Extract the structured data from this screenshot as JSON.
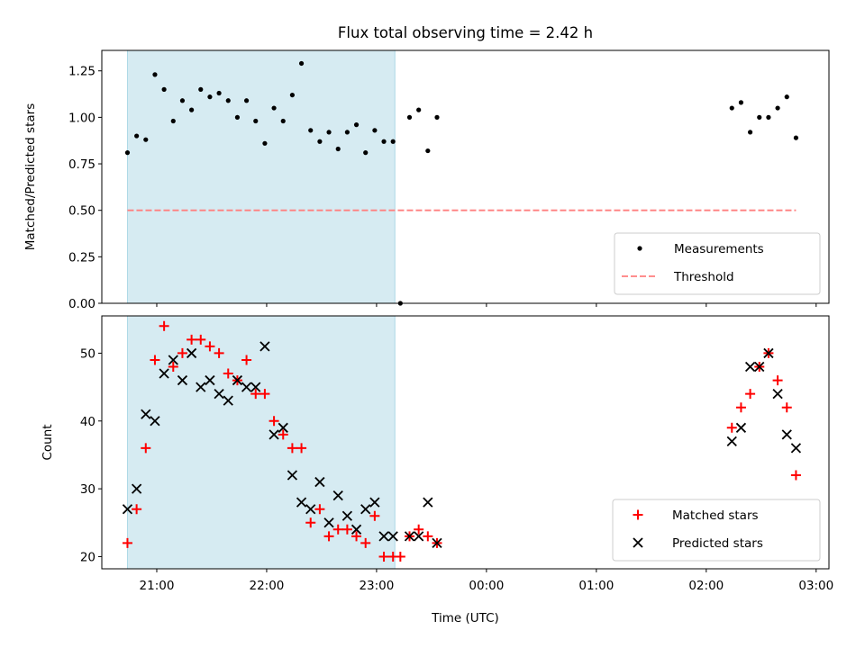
{
  "chart_data": [
    {
      "type": "scatter",
      "title": "Flux total observing time = 2.42 h",
      "xlabel": "",
      "ylabel": "Matched/Predicted stars",
      "ylim": [
        0,
        1.36
      ],
      "yticks": [
        "0.00",
        "0.25",
        "0.50",
        "0.75",
        "1.00",
        "1.25"
      ],
      "shaded_interval": [
        "20:44",
        "23:10"
      ],
      "shade_color": "#add8e6",
      "legend_position": "lower-right",
      "series": [
        {
          "name": "Measurements",
          "marker": "dot",
          "color": "#000000",
          "points": [
            [
              "20:44",
              0.81
            ],
            [
              "20:49",
              0.9
            ],
            [
              "20:54",
              0.88
            ],
            [
              "20:59",
              1.23
            ],
            [
              "21:04",
              1.15
            ],
            [
              "21:09",
              0.98
            ],
            [
              "21:14",
              1.09
            ],
            [
              "21:19",
              1.04
            ],
            [
              "21:24",
              1.15
            ],
            [
              "21:29",
              1.11
            ],
            [
              "21:34",
              1.13
            ],
            [
              "21:39",
              1.09
            ],
            [
              "21:44",
              1.0
            ],
            [
              "21:49",
              1.09
            ],
            [
              "21:54",
              0.98
            ],
            [
              "21:59",
              0.86
            ],
            [
              "22:04",
              1.05
            ],
            [
              "22:09",
              0.98
            ],
            [
              "22:14",
              1.12
            ],
            [
              "22:19",
              1.29
            ],
            [
              "22:24",
              0.93
            ],
            [
              "22:29",
              0.87
            ],
            [
              "22:34",
              0.92
            ],
            [
              "22:39",
              0.83
            ],
            [
              "22:44",
              0.92
            ],
            [
              "22:49",
              0.96
            ],
            [
              "22:54",
              0.81
            ],
            [
              "22:59",
              0.93
            ],
            [
              "23:04",
              0.87
            ],
            [
              "23:09",
              0.87
            ],
            [
              "23:13",
              0.0
            ],
            [
              "23:18",
              1.0
            ],
            [
              "23:23",
              1.04
            ],
            [
              "23:28",
              0.82
            ],
            [
              "23:33",
              1.0
            ],
            [
              "02:14",
              1.05
            ],
            [
              "02:19",
              1.08
            ],
            [
              "02:24",
              0.92
            ],
            [
              "02:29",
              1.0
            ],
            [
              "02:34",
              1.0
            ],
            [
              "02:39",
              1.05
            ],
            [
              "02:44",
              1.11
            ],
            [
              "02:49",
              0.89
            ]
          ]
        },
        {
          "name": "Threshold",
          "marker": "dashed-line",
          "color": "#ff7f7f",
          "points": [
            [
              "20:44",
              0.5
            ],
            [
              "02:49",
              0.5
            ]
          ]
        }
      ]
    },
    {
      "type": "scatter",
      "title": "",
      "xlabel": "Time (UTC)",
      "ylabel": "Count",
      "ylim": [
        18.2,
        55.5
      ],
      "yticks": [
        "20",
        "30",
        "40",
        "50"
      ],
      "xlim": [
        "20:30",
        "03:07"
      ],
      "xticks": [
        "21:00",
        "22:00",
        "23:00",
        "00:00",
        "01:00",
        "02:00",
        "03:00"
      ],
      "shaded_interval": [
        "20:44",
        "23:10"
      ],
      "shade_color": "#add8e6",
      "legend_position": "lower-right",
      "series": [
        {
          "name": "Matched stars",
          "marker": "plus",
          "color": "#ff0000",
          "points": [
            [
              "20:44",
              22
            ],
            [
              "20:49",
              27
            ],
            [
              "20:54",
              36
            ],
            [
              "20:59",
              49
            ],
            [
              "21:04",
              54
            ],
            [
              "21:09",
              48
            ],
            [
              "21:14",
              50
            ],
            [
              "21:19",
              52
            ],
            [
              "21:24",
              52
            ],
            [
              "21:29",
              51
            ],
            [
              "21:34",
              50
            ],
            [
              "21:39",
              47
            ],
            [
              "21:44",
              46
            ],
            [
              "21:49",
              49
            ],
            [
              "21:54",
              44
            ],
            [
              "21:59",
              44
            ],
            [
              "22:04",
              40
            ],
            [
              "22:09",
              38
            ],
            [
              "22:14",
              36
            ],
            [
              "22:19",
              36
            ],
            [
              "22:24",
              25
            ],
            [
              "22:29",
              27
            ],
            [
              "22:34",
              23
            ],
            [
              "22:39",
              24
            ],
            [
              "22:44",
              24
            ],
            [
              "22:49",
              23
            ],
            [
              "22:54",
              22
            ],
            [
              "22:59",
              26
            ],
            [
              "23:04",
              20
            ],
            [
              "23:09",
              20
            ],
            [
              "23:13",
              20
            ],
            [
              "23:18",
              23
            ],
            [
              "23:23",
              24
            ],
            [
              "23:28",
              23
            ],
            [
              "23:33",
              22
            ],
            [
              "02:14",
              39
            ],
            [
              "02:19",
              42
            ],
            [
              "02:24",
              44
            ],
            [
              "02:29",
              48
            ],
            [
              "02:34",
              50
            ],
            [
              "02:39",
              46
            ],
            [
              "02:44",
              42
            ],
            [
              "02:49",
              32
            ]
          ]
        },
        {
          "name": "Predicted stars",
          "marker": "x",
          "color": "#000000",
          "points": [
            [
              "20:44",
              27
            ],
            [
              "20:49",
              30
            ],
            [
              "20:54",
              41
            ],
            [
              "20:59",
              40
            ],
            [
              "21:04",
              47
            ],
            [
              "21:09",
              49
            ],
            [
              "21:14",
              46
            ],
            [
              "21:19",
              50
            ],
            [
              "21:24",
              45
            ],
            [
              "21:29",
              46
            ],
            [
              "21:34",
              44
            ],
            [
              "21:39",
              43
            ],
            [
              "21:44",
              46
            ],
            [
              "21:49",
              45
            ],
            [
              "21:54",
              45
            ],
            [
              "21:59",
              51
            ],
            [
              "22:04",
              38
            ],
            [
              "22:09",
              39
            ],
            [
              "22:14",
              32
            ],
            [
              "22:19",
              28
            ],
            [
              "22:24",
              27
            ],
            [
              "22:29",
              31
            ],
            [
              "22:34",
              25
            ],
            [
              "22:39",
              29
            ],
            [
              "22:44",
              26
            ],
            [
              "22:49",
              24
            ],
            [
              "22:54",
              27
            ],
            [
              "22:59",
              28
            ],
            [
              "23:04",
              23
            ],
            [
              "23:09",
              23
            ],
            [
              "23:18",
              23
            ],
            [
              "23:23",
              23
            ],
            [
              "23:28",
              28
            ],
            [
              "23:33",
              22
            ],
            [
              "02:14",
              37
            ],
            [
              "02:19",
              39
            ],
            [
              "02:24",
              48
            ],
            [
              "02:29",
              48
            ],
            [
              "02:34",
              50
            ],
            [
              "02:39",
              44
            ],
            [
              "02:44",
              38
            ],
            [
              "02:49",
              36
            ]
          ]
        }
      ]
    }
  ]
}
